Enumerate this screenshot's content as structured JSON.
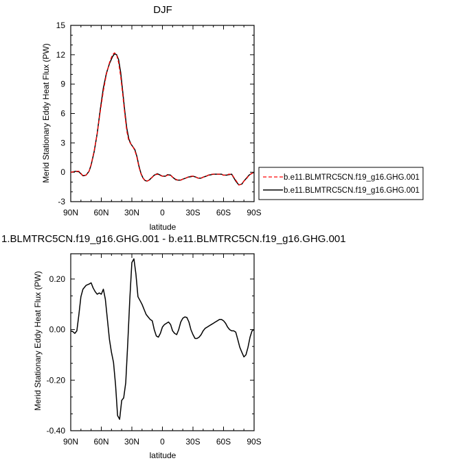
{
  "chart_data": [
    {
      "type": "line",
      "title": "DJF",
      "xlabel": "latitude",
      "ylabel": "Merid Stationary Eddy Heat Flux (PW)",
      "xlim": [
        90,
        -90
      ],
      "ylim": [
        -3,
        15
      ],
      "yticks": [
        -3,
        0,
        3,
        6,
        9,
        12,
        15
      ],
      "xticks": [
        90,
        60,
        30,
        0,
        -30,
        -60,
        -90
      ],
      "xtick_labels": [
        "90N",
        "60N",
        "30N",
        "0",
        "30S",
        "60S",
        "90S"
      ],
      "legend": {
        "placement": "outside-right"
      },
      "series": [
        {
          "name": "b.e11.BLMTRC5CN.f19_g16.GHG.001",
          "color": "#ff0000",
          "dash": "dashed",
          "x": [
            90,
            85,
            82,
            80,
            78,
            75,
            72,
            70,
            67,
            64,
            61,
            58,
            55,
            52,
            49,
            47,
            45,
            43,
            41,
            39,
            37,
            35,
            33,
            31,
            29,
            27,
            25,
            23,
            21,
            19,
            17,
            15,
            13,
            10,
            8,
            5,
            3,
            0,
            -3,
            -5,
            -8,
            -10,
            -13,
            -15,
            -18,
            -20,
            -23,
            -25,
            -28,
            -30,
            -33,
            -35,
            -38,
            -40,
            -43,
            -45,
            -48,
            -50,
            -53,
            -55,
            -58,
            -60,
            -63,
            -65,
            -68,
            -70,
            -72,
            -75,
            -78,
            -80,
            -83,
            -85,
            -88,
            -90
          ],
          "y": [
            0.0,
            0.1,
            0.1,
            -0.1,
            -0.4,
            -0.3,
            0.1,
            0.8,
            2.2,
            4.0,
            6.2,
            8.3,
            10.0,
            11.2,
            12.0,
            12.2,
            12.0,
            11.2,
            9.8,
            8.0,
            6.0,
            4.2,
            3.2,
            2.9,
            2.6,
            2.2,
            1.5,
            0.5,
            -0.2,
            -0.6,
            -0.9,
            -0.9,
            -0.8,
            -0.5,
            -0.3,
            -0.2,
            -0.3,
            -0.4,
            -0.4,
            -0.3,
            -0.3,
            -0.5,
            -0.7,
            -0.8,
            -0.8,
            -0.7,
            -0.6,
            -0.5,
            -0.4,
            -0.4,
            -0.5,
            -0.6,
            -0.6,
            -0.5,
            -0.4,
            -0.3,
            -0.2,
            -0.2,
            -0.2,
            -0.2,
            -0.2,
            -0.3,
            -0.3,
            -0.2,
            -0.2,
            -0.5,
            -0.8,
            -1.3,
            -1.2,
            -0.9,
            -0.6,
            -0.3,
            -0.1,
            0.0
          ]
        },
        {
          "name": "b.e11.BLMTRC5CN.f19_g16.GHG.001",
          "color": "#000000",
          "dash": "solid",
          "x": [
            90,
            85,
            82,
            80,
            78,
            75,
            72,
            70,
            67,
            64,
            61,
            58,
            55,
            52,
            49,
            47,
            45,
            43,
            41,
            39,
            37,
            35,
            33,
            31,
            29,
            27,
            25,
            23,
            21,
            19,
            17,
            15,
            13,
            10,
            8,
            5,
            3,
            0,
            -3,
            -5,
            -8,
            -10,
            -13,
            -15,
            -18,
            -20,
            -23,
            -25,
            -28,
            -30,
            -33,
            -35,
            -38,
            -40,
            -43,
            -45,
            -48,
            -50,
            -53,
            -55,
            -58,
            -60,
            -63,
            -65,
            -68,
            -70,
            -72,
            -75,
            -78,
            -80,
            -83,
            -85,
            -88,
            -90
          ],
          "y": [
            0.0,
            0.1,
            0.05,
            -0.15,
            -0.35,
            -0.3,
            0.1,
            0.75,
            2.1,
            4.0,
            6.4,
            8.6,
            10.1,
            11.1,
            11.8,
            12.1,
            12.0,
            11.5,
            10.2,
            8.3,
            6.3,
            4.5,
            3.4,
            2.9,
            2.6,
            2.3,
            1.6,
            0.6,
            -0.15,
            -0.6,
            -0.85,
            -0.9,
            -0.8,
            -0.5,
            -0.3,
            -0.15,
            -0.25,
            -0.4,
            -0.4,
            -0.25,
            -0.3,
            -0.5,
            -0.75,
            -0.8,
            -0.8,
            -0.7,
            -0.6,
            -0.5,
            -0.45,
            -0.4,
            -0.5,
            -0.6,
            -0.6,
            -0.5,
            -0.4,
            -0.3,
            -0.25,
            -0.2,
            -0.2,
            -0.2,
            -0.2,
            -0.3,
            -0.3,
            -0.25,
            -0.2,
            -0.55,
            -0.9,
            -1.3,
            -1.2,
            -0.9,
            -0.55,
            -0.3,
            -0.1,
            0.0
          ]
        }
      ]
    },
    {
      "type": "line",
      "title": "1.BLMTRC5CN.f19_g16.GHG.001 - b.e11.BLMTRC5CN.f19_g16.GHG.001",
      "xlabel": "latitude",
      "ylabel": "Merid Stationary Eddy Heat Flux (PW)",
      "xlim": [
        90,
        -90
      ],
      "ylim": [
        -0.4,
        0.3
      ],
      "yticks": [
        -0.4,
        -0.2,
        0.0,
        0.2
      ],
      "ytick_labels": [
        "-0.40",
        "-0.20",
        "0.00",
        "0.20"
      ],
      "xticks": [
        90,
        60,
        30,
        0,
        -30,
        -60,
        -90
      ],
      "xtick_labels": [
        "90N",
        "60N",
        "30N",
        "0",
        "30S",
        "60S",
        "90S"
      ],
      "series": [
        {
          "color": "#000000",
          "dash": "solid",
          "x": [
            90,
            88,
            86,
            84,
            82,
            80,
            78,
            75,
            72,
            70,
            68,
            66,
            64,
            62,
            60,
            58,
            56,
            54,
            52,
            50,
            48,
            46,
            44,
            42,
            40,
            38,
            36,
            34,
            32,
            30,
            28,
            26,
            24,
            22,
            20,
            18,
            16,
            14,
            12,
            10,
            8,
            6,
            4,
            2,
            0,
            -2,
            -4,
            -6,
            -8,
            -10,
            -12,
            -14,
            -16,
            -18,
            -20,
            -22,
            -24,
            -26,
            -28,
            -30,
            -32,
            -34,
            -36,
            -38,
            -40,
            -42,
            -44,
            -46,
            -48,
            -50,
            -52,
            -54,
            -56,
            -58,
            -60,
            -62,
            -64,
            -66,
            -68,
            -70,
            -72,
            -74,
            -76,
            -78,
            -80,
            -82,
            -84,
            -86,
            -88,
            -90
          ],
          "y": [
            -0.005,
            -0.008,
            -0.015,
            -0.005,
            0.06,
            0.13,
            0.16,
            0.175,
            0.18,
            0.185,
            0.165,
            0.15,
            0.14,
            0.145,
            0.14,
            0.16,
            0.12,
            0.04,
            -0.04,
            -0.09,
            -0.13,
            -0.22,
            -0.34,
            -0.355,
            -0.28,
            -0.27,
            -0.21,
            -0.05,
            0.12,
            0.265,
            0.28,
            0.22,
            0.13,
            0.115,
            0.1,
            0.08,
            0.06,
            0.05,
            0.04,
            0.035,
            0.0,
            -0.025,
            -0.03,
            -0.015,
            0.01,
            0.02,
            0.025,
            0.03,
            0.02,
            -0.005,
            -0.015,
            -0.02,
            0.0,
            0.03,
            0.045,
            0.05,
            0.048,
            0.03,
            0.0,
            -0.02,
            -0.035,
            -0.035,
            -0.03,
            -0.02,
            -0.005,
            0.005,
            0.01,
            0.015,
            0.02,
            0.025,
            0.03,
            0.035,
            0.04,
            0.04,
            0.035,
            0.025,
            0.01,
            0.0,
            -0.005,
            -0.005,
            -0.01,
            -0.04,
            -0.07,
            -0.09,
            -0.108,
            -0.1,
            -0.07,
            -0.03,
            -0.005,
            0.0
          ]
        }
      ]
    }
  ]
}
